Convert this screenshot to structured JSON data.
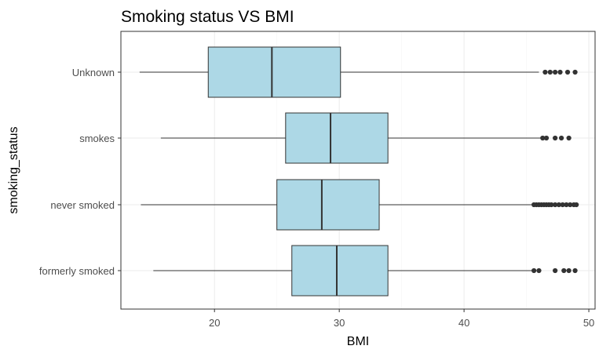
{
  "chart_data": {
    "type": "boxplot",
    "orientation": "horizontal",
    "title": "Smoking status VS BMI",
    "xlabel": "BMI",
    "ylabel": "smoking_status",
    "xlim": [
      12.5,
      50.5
    ],
    "xticks": [
      20,
      30,
      40,
      50
    ],
    "grid": true,
    "fill_color": "#ADD8E6",
    "outline_color": "#333333",
    "outlier_color": "#333333",
    "categories": [
      "Unknown",
      "smokes",
      "never smoked",
      "formerly smoked"
    ],
    "boxes": [
      {
        "category": "Unknown",
        "whisker_low": 14.0,
        "q1": 19.5,
        "median": 24.6,
        "q3": 30.1,
        "whisker_high": 46.0,
        "outliers": [
          46.5,
          46.9,
          47.3,
          47.7,
          48.3,
          48.9
        ]
      },
      {
        "category": "smokes",
        "whisker_low": 15.7,
        "q1": 25.7,
        "median": 29.3,
        "q3": 33.9,
        "whisker_high": 46.2,
        "outliers": [
          46.3,
          46.6,
          47.3,
          47.8,
          48.4
        ]
      },
      {
        "category": "never smoked",
        "whisker_low": 14.1,
        "q1": 25.0,
        "median": 28.6,
        "q3": 33.2,
        "whisker_high": 45.4,
        "outliers": [
          45.6,
          45.8,
          46.0,
          46.2,
          46.4,
          46.6,
          46.8,
          47.0,
          47.3,
          47.6,
          47.9,
          48.2,
          48.5,
          48.8,
          49.0
        ]
      },
      {
        "category": "formerly smoked",
        "whisker_low": 15.1,
        "q1": 26.2,
        "median": 29.8,
        "q3": 33.9,
        "whisker_high": 45.5,
        "outliers": [
          45.6,
          46.0,
          47.3,
          48.0,
          48.4,
          48.9
        ]
      }
    ]
  }
}
